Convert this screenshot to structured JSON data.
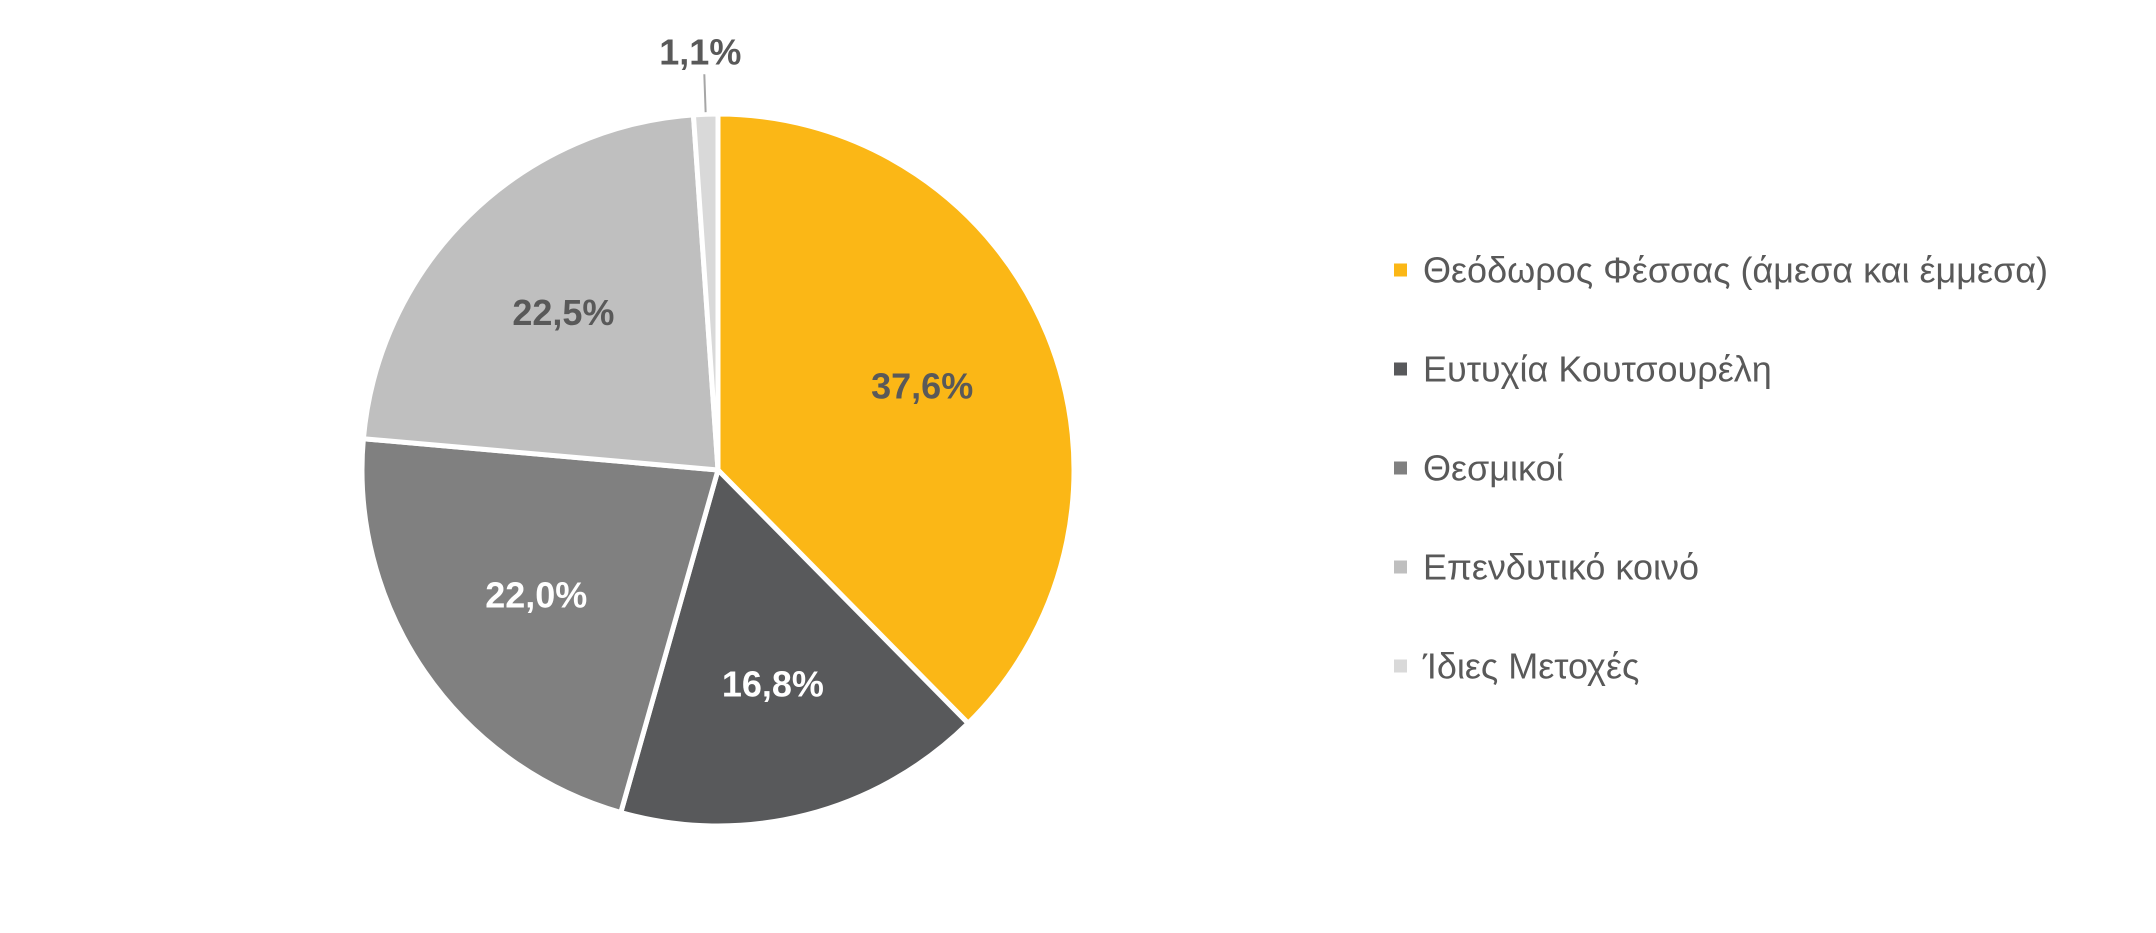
{
  "chart_data": {
    "type": "pie",
    "start_angle": "12 o'clock",
    "direction": "clockwise",
    "legend_position": "right",
    "slices": [
      {
        "label": "Θεόδωρος Φέσσας (άμεσα και έμμεσα)",
        "value": 37.6,
        "value_label": "37,6%",
        "color": "#FBB716",
        "label_color": "#595959"
      },
      {
        "label": "Ευτυχία Κουτσουρέλη",
        "value": 16.8,
        "value_label": "16,8%",
        "color": "#58595B",
        "label_color": "#FFFFFF"
      },
      {
        "label": "Θεσμικοί",
        "value": 22.0,
        "value_label": "22,0%",
        "color": "#808080",
        "label_color": "#FFFFFF"
      },
      {
        "label": "Επενδυτικό κοινό",
        "value": 22.5,
        "value_label": "22,5%",
        "color": "#BFBFBF",
        "label_color": "#595959"
      },
      {
        "label": "Ίδιες Μετοχές",
        "value": 1.1,
        "value_label": "1,1%",
        "color": "#D9D9D9",
        "label_color": "#595959"
      }
    ]
  }
}
